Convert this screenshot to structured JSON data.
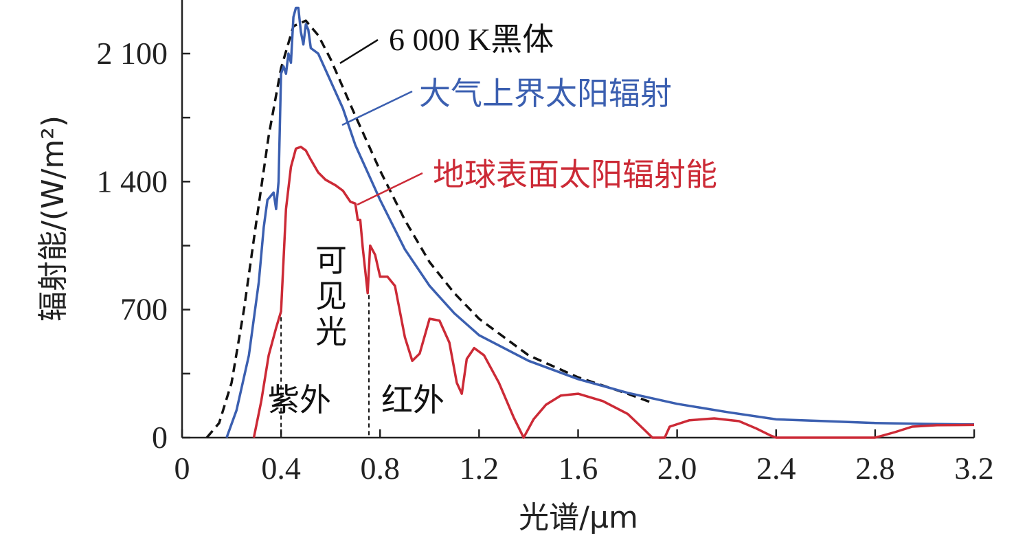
{
  "chart_data": {
    "type": "line",
    "xlabel": "光谱/μm",
    "ylabel": "辐射能/(W/m²)",
    "xlim": [
      0,
      3.2
    ],
    "ylim": [
      0,
      2350
    ],
    "x_ticks": [
      0,
      0.4,
      0.8,
      1.2,
      1.6,
      2.0,
      2.4,
      2.8,
      3.2
    ],
    "x_tick_labels": [
      "0",
      "0.4",
      "0.8",
      "1.2",
      "1.6",
      "2.0",
      "2.4",
      "2.8",
      "3.2"
    ],
    "y_ticks": [
      0,
      350,
      700,
      1050,
      1400,
      1750,
      2100
    ],
    "y_tick_labels": [
      "0",
      "",
      "700",
      "",
      "1 400",
      "",
      "2 100"
    ],
    "grid": false,
    "series": [
      {
        "name": "6 000 K黑体",
        "color": "#111111",
        "style": "dashed",
        "points": [
          [
            0.1,
            0
          ],
          [
            0.15,
            80
          ],
          [
            0.2,
            300
          ],
          [
            0.25,
            700
          ],
          [
            0.3,
            1180
          ],
          [
            0.35,
            1650
          ],
          [
            0.4,
            2020
          ],
          [
            0.45,
            2250
          ],
          [
            0.5,
            2280
          ],
          [
            0.55,
            2200
          ],
          [
            0.6,
            2070
          ],
          [
            0.7,
            1760
          ],
          [
            0.8,
            1460
          ],
          [
            0.9,
            1190
          ],
          [
            1.0,
            960
          ],
          [
            1.1,
            790
          ],
          [
            1.2,
            650
          ],
          [
            1.4,
            450
          ],
          [
            1.6,
            330
          ],
          [
            1.8,
            240
          ],
          [
            1.9,
            190
          ]
        ]
      },
      {
        "name": "大气上界太阳辐射",
        "color": "#3b5fb0",
        "style": "solid",
        "points": [
          [
            0.18,
            0
          ],
          [
            0.22,
            150
          ],
          [
            0.27,
            450
          ],
          [
            0.31,
            850
          ],
          [
            0.33,
            1150
          ],
          [
            0.345,
            1300
          ],
          [
            0.37,
            1340
          ],
          [
            0.38,
            1250
          ],
          [
            0.39,
            1400
          ],
          [
            0.4,
            1990
          ],
          [
            0.41,
            2030
          ],
          [
            0.42,
            1990
          ],
          [
            0.43,
            2100
          ],
          [
            0.44,
            2050
          ],
          [
            0.45,
            2300
          ],
          [
            0.46,
            2350
          ],
          [
            0.47,
            2350
          ],
          [
            0.48,
            2220
          ],
          [
            0.49,
            2150
          ],
          [
            0.5,
            2260
          ],
          [
            0.51,
            2230
          ],
          [
            0.52,
            2130
          ],
          [
            0.55,
            2100
          ],
          [
            0.6,
            1950
          ],
          [
            0.65,
            1800
          ],
          [
            0.7,
            1600
          ],
          [
            0.8,
            1300
          ],
          [
            0.9,
            1030
          ],
          [
            1.0,
            830
          ],
          [
            1.1,
            680
          ],
          [
            1.2,
            560
          ],
          [
            1.4,
            420
          ],
          [
            1.6,
            320
          ],
          [
            1.8,
            245
          ],
          [
            2.0,
            185
          ],
          [
            2.2,
            140
          ],
          [
            2.4,
            100
          ],
          [
            2.6,
            90
          ],
          [
            2.8,
            80
          ],
          [
            3.0,
            75
          ],
          [
            3.2,
            72
          ]
        ]
      },
      {
        "name": "地球表面太阳辐射能",
        "color": "#cc2a36",
        "style": "solid",
        "points": [
          [
            0.29,
            0
          ],
          [
            0.32,
            200
          ],
          [
            0.35,
            450
          ],
          [
            0.38,
            600
          ],
          [
            0.4,
            690
          ],
          [
            0.42,
            1250
          ],
          [
            0.44,
            1480
          ],
          [
            0.46,
            1580
          ],
          [
            0.48,
            1590
          ],
          [
            0.5,
            1570
          ],
          [
            0.52,
            1520
          ],
          [
            0.55,
            1450
          ],
          [
            0.58,
            1410
          ],
          [
            0.62,
            1380
          ],
          [
            0.65,
            1350
          ],
          [
            0.68,
            1290
          ],
          [
            0.7,
            1280
          ],
          [
            0.71,
            1190
          ],
          [
            0.72,
            1190
          ],
          [
            0.73,
            1040
          ],
          [
            0.75,
            790
          ],
          [
            0.76,
            1050
          ],
          [
            0.78,
            1000
          ],
          [
            0.8,
            880
          ],
          [
            0.83,
            880
          ],
          [
            0.86,
            830
          ],
          [
            0.9,
            550
          ],
          [
            0.93,
            420
          ],
          [
            0.96,
            460
          ],
          [
            1.0,
            650
          ],
          [
            1.04,
            640
          ],
          [
            1.08,
            520
          ],
          [
            1.11,
            300
          ],
          [
            1.13,
            240
          ],
          [
            1.15,
            430
          ],
          [
            1.18,
            490
          ],
          [
            1.22,
            450
          ],
          [
            1.28,
            300
          ],
          [
            1.34,
            110
          ],
          [
            1.38,
            0
          ],
          [
            1.42,
            100
          ],
          [
            1.47,
            180
          ],
          [
            1.53,
            230
          ],
          [
            1.6,
            240
          ],
          [
            1.7,
            200
          ],
          [
            1.8,
            130
          ],
          [
            1.87,
            40
          ],
          [
            1.9,
            0
          ],
          [
            1.95,
            0
          ],
          [
            1.97,
            60
          ],
          [
            2.05,
            95
          ],
          [
            2.15,
            105
          ],
          [
            2.25,
            90
          ],
          [
            2.32,
            50
          ],
          [
            2.38,
            10
          ],
          [
            2.4,
            0
          ],
          [
            2.8,
            0
          ],
          [
            2.88,
            30
          ],
          [
            2.95,
            60
          ],
          [
            3.05,
            68
          ],
          [
            3.2,
            70
          ]
        ]
      }
    ],
    "vlines": [
      {
        "x": 0.4,
        "y_top": 700
      },
      {
        "x": 0.755,
        "y_top": 780
      }
    ],
    "annotations": [
      {
        "text": "6 000 K黑体",
        "color": "#111111"
      },
      {
        "text": "大气上界太阳辐射",
        "color": "#3b5fb0"
      },
      {
        "text": "地球表面太阳辐射能",
        "color": "#cc2a36"
      },
      {
        "text": "可见光",
        "color": "#111111"
      },
      {
        "text": "紫外",
        "color": "#111111"
      },
      {
        "text": "红外",
        "color": "#111111"
      }
    ]
  }
}
